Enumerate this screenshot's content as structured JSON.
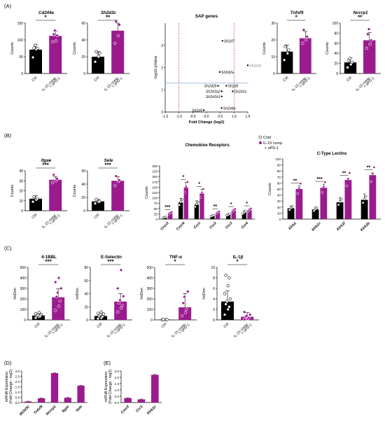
{
  "colors": {
    "ctrl": "#000000",
    "treat": "#9B1B8E",
    "sap_cutoff_v": "#E0311E",
    "sap_cutoff_h": "#8BAEDD",
    "point": "#000000",
    "label_grey": "#888888"
  },
  "panels": {
    "A": "(A)",
    "B": "(B)",
    "C": "(C)",
    "D": "(D)",
    "E": "(E)"
  },
  "groups": {
    "ctrl": "Ctrl",
    "treat_line1": "IL-15 comp.",
    "treat_line2": "+ αPD-1"
  },
  "chart_data": [
    {
      "id": "A1",
      "type": "bar",
      "title": "Cd244a",
      "italic": true,
      "ylabel": "Counts",
      "categories": [
        "Ctrl",
        "IL-15 comp. + αPD-1"
      ],
      "values": [
        71,
        112
      ],
      "errors": [
        15,
        14
      ],
      "ylim": [
        0,
        150
      ],
      "yticks": [
        0,
        50,
        100,
        150
      ],
      "points": [
        [
          48,
          72,
          75,
          76,
          84
        ],
        [
          94,
          97,
          113,
          117,
          128
        ]
      ],
      "sig": "*"
    },
    {
      "id": "A2",
      "type": "bar",
      "title": "Sh2d3c",
      "italic": true,
      "ylabel": "Counts",
      "categories": [
        "Ctrl",
        "IL-15 comp. + αPD-1"
      ],
      "values": [
        20,
        51
      ],
      "errors": [
        6,
        13
      ],
      "ylim": [
        0,
        60
      ],
      "yticks": [
        0,
        20,
        40,
        60
      ],
      "points": [
        [
          14,
          20,
          24,
          26
        ],
        [
          36,
          45,
          58,
          62
        ]
      ],
      "sig": "**"
    },
    {
      "id": "A3",
      "type": "scatter",
      "title": "SAP genes",
      "xlabel": "Fold Change (log2)",
      "ylabel": "-log10 pValue",
      "xlim": [
        -1.5,
        1.5
      ],
      "ylim": [
        0,
        4
      ],
      "xticks": [
        -1.5,
        -1.0,
        -0.5,
        0.0,
        0.5,
        1.0,
        1.5
      ],
      "yticks": [
        0,
        1,
        2,
        3
      ],
      "cutoff_x": [
        -1,
        1
      ],
      "cutoff_y": 1.3,
      "points": [
        {
          "label": "Sh2d7",
          "x": 0.58,
          "y": 3.2
        },
        {
          "label": "Sh2d3c",
          "x": 1.5,
          "y": 2.1
        },
        {
          "label": "Sh2d2a",
          "x": 0.48,
          "y": 1.8
        },
        {
          "label": "Sh2d2b",
          "x": 0.42,
          "y": 1.18
        },
        {
          "label": "Sh2d6",
          "x": 0.72,
          "y": 1.18
        },
        {
          "label": "Sh2d1b2",
          "x": 0.55,
          "y": 0.93
        },
        {
          "label": "Sh2d1a",
          "x": 0.95,
          "y": 0.93
        },
        {
          "label": "Sh2d1b1",
          "x": 0.55,
          "y": 0.7
        },
        {
          "label": "Sh2d4a",
          "x": 0.55,
          "y": 0.18
        },
        {
          "label": "Sh2d5",
          "x": -0.1,
          "y": 0.08
        }
      ]
    },
    {
      "id": "A4",
      "type": "bar",
      "title": "Tnfsf9",
      "italic": true,
      "ylabel": "Counts",
      "categories": [
        "Ctrl",
        "IL-15 comp. + αPD-1"
      ],
      "values": [
        13,
        21
      ],
      "errors": [
        4,
        4
      ],
      "ylim": [
        0,
        30
      ],
      "yticks": [
        0,
        10,
        20,
        30
      ],
      "points": [
        [
          8,
          12,
          14,
          16
        ],
        [
          18,
          20,
          22,
          26
        ]
      ],
      "sig": "*"
    },
    {
      "id": "A5",
      "type": "bar",
      "title": "Nccrp1",
      "italic": true,
      "ylabel": "Counts",
      "categories": [
        "Ctrl",
        "IL-15 comp. + αPD-1"
      ],
      "values": [
        22,
        66
      ],
      "errors": [
        9,
        15
      ],
      "ylim": [
        0,
        100
      ],
      "yticks": [
        0,
        20,
        40,
        60,
        80,
        100
      ],
      "points": [
        [
          12,
          18,
          22,
          26,
          30
        ],
        [
          50,
          58,
          66,
          78,
          88
        ]
      ],
      "sig": "**"
    },
    {
      "id": "B1",
      "type": "bar",
      "title": "Itgae",
      "italic": true,
      "ylabel": "Counts",
      "categories": [
        "Ctrl",
        "IL-15 comp. + αPD-1"
      ],
      "values": [
        12,
        31
      ],
      "errors": [
        3,
        3
      ],
      "ylim": [
        0,
        40
      ],
      "yticks": [
        0,
        10,
        20,
        30,
        40
      ],
      "points": [
        [
          9,
          11,
          12,
          14
        ],
        [
          28,
          30,
          32,
          36
        ]
      ],
      "sig": "***"
    },
    {
      "id": "B2",
      "type": "bar",
      "title": "Sele",
      "italic": true,
      "ylabel": "Counts",
      "categories": [
        "Ctrl",
        "IL-15 comp. + αPD-1"
      ],
      "values": [
        14,
        45
      ],
      "errors": [
        3,
        6
      ],
      "ylim": [
        0,
        60
      ],
      "yticks": [
        0,
        20,
        40,
        60
      ],
      "points": [
        [
          11,
          13,
          14,
          17
        ],
        [
          38,
          44,
          46,
          52
        ]
      ],
      "sig": "***"
    },
    {
      "id": "B3",
      "type": "grouped_bar",
      "title": "Chemokine Receptors",
      "ylabel": "Counts",
      "ylim": [
        0,
        250
      ],
      "yticks": [
        0,
        25,
        50,
        75,
        100,
        125,
        150,
        175,
        200,
        225,
        250
      ],
      "legend": [
        "Cntrl",
        "IL-15 comp.",
        "+ αPD-1"
      ],
      "categories": [
        "Cxcr2",
        "Cxcr6",
        "Ccr1",
        "Ccr2",
        "Ccr3",
        "Ccr4"
      ],
      "series": [
        {
          "name": "Cntrl",
          "values": [
            8,
            78,
            68,
            15,
            20,
            30
          ],
          "errors": [
            3,
            20,
            18,
            3,
            6,
            10
          ]
        },
        {
          "name": "IL-15 comp. + αPD-1",
          "values": [
            28,
            148,
            120,
            30,
            40,
            42
          ],
          "errors": [
            4,
            25,
            20,
            5,
            6,
            7
          ]
        }
      ],
      "sig": [
        "***",
        "*",
        "*",
        "**",
        "*",
        "*"
      ]
    },
    {
      "id": "B4",
      "type": "grouped_bar",
      "title": "C-Type Lectins",
      "ylabel": "Counts",
      "ylim": [
        0,
        100
      ],
      "yticks": [
        0,
        10,
        20,
        30,
        40,
        50,
        60,
        70,
        80,
        90,
        100
      ],
      "categories": [
        "Klrb1",
        "Klrb1c",
        "Klrb1f",
        "Klrb1b"
      ],
      "series": [
        {
          "name": "Cntrl",
          "values": [
            18,
            16,
            28,
            32
          ],
          "errors": [
            4,
            4,
            8,
            10
          ]
        },
        {
          "name": "IL-15 comp. + αPD-1",
          "values": [
            50,
            52,
            65,
            73
          ],
          "errors": [
            5,
            6,
            3,
            4
          ]
        }
      ],
      "sig": [
        "**",
        "***",
        "**",
        "**"
      ]
    },
    {
      "id": "C1",
      "type": "bar",
      "title": "4-1BBL",
      "ylabel": "IntDen",
      "categories": [
        "Ctrl",
        "IL-15 comp. + αPD-1"
      ],
      "values": [
        42,
        215
      ],
      "errors": [
        12,
        80
      ],
      "ylim": [
        0,
        500
      ],
      "yticks": [
        0,
        100,
        200,
        300,
        400,
        500
      ],
      "points": [
        [
          20,
          28,
          34,
          40,
          45,
          52,
          60,
          70
        ],
        [
          90,
          130,
          180,
          220,
          260,
          300,
          360,
          400
        ]
      ],
      "sig": "***"
    },
    {
      "id": "C2",
      "type": "bar",
      "title": "E-Selectin",
      "ylabel": "IntDen",
      "categories": [
        "Ctrl",
        "IL-15 comp. + αPD-1"
      ],
      "values": [
        6,
        28
      ],
      "errors": [
        2,
        12
      ],
      "ylim": [
        0,
        80
      ],
      "yticks": [
        0,
        20,
        40,
        60,
        80
      ],
      "points": [
        [
          2,
          3,
          5,
          6,
          8,
          9,
          10,
          12
        ],
        [
          12,
          18,
          22,
          26,
          30,
          36,
          48,
          76
        ]
      ],
      "sig": "***"
    },
    {
      "id": "C3",
      "type": "bar",
      "title": "TNF-α",
      "ylabel": "IntDen",
      "categories": [
        "Ctrl",
        "IL-15 comp. + αPD-1"
      ],
      "values": [
        2,
        120
      ],
      "errors": [
        1,
        130
      ],
      "ylim": [
        0,
        500
      ],
      "yticks": [
        0,
        100,
        200,
        300,
        400,
        500
      ],
      "points": [
        [
          1,
          2,
          3,
          4
        ],
        [
          40,
          70,
          100,
          160,
          220,
          270
        ]
      ],
      "sig": "*"
    },
    {
      "id": "C4",
      "type": "bar",
      "title": "IL-1β",
      "ylabel": "IntDen",
      "categories": [
        "Ctrl",
        "IL-15 comp. + αPD-1"
      ],
      "values": [
        3.5,
        0.6
      ],
      "errors": [
        2,
        0.8
      ],
      "ylim": [
        0,
        10
      ],
      "yticks": [
        0,
        2,
        4,
        6,
        8,
        10
      ],
      "points": [
        [
          1,
          2,
          2.5,
          3,
          3.5,
          4,
          5,
          6.5,
          8,
          8.5
        ],
        [
          0.1,
          0.2,
          0.4,
          0.6,
          0.8,
          1,
          1.5
        ]
      ],
      "sig": "*"
    },
    {
      "id": "D",
      "type": "bar",
      "ylabel": "mRNA Expression",
      "ylabel2": "(Fold Change - log2)",
      "categories": [
        "Sh2d3c",
        "Tnfsf9",
        "Nccrp1",
        "Itgae",
        "Sele"
      ],
      "values": [
        0.1,
        0.4,
        2.8,
        0.45,
        1.6
      ],
      "errors": [
        0.03,
        0.03,
        0.03,
        0.03,
        0.03
      ],
      "ylim": [
        0,
        3.0
      ],
      "yticks": [
        0.0,
        0.5,
        1.0,
        1.5,
        2.0,
        2.5,
        3.0
      ]
    },
    {
      "id": "E",
      "type": "bar",
      "ylabel": "mRNA Expression",
      "ylabel2": "(Fold Change - log2)",
      "categories": [
        "Cxcr2",
        "Ccr1",
        "Klrb1c"
      ],
      "values": [
        0.35,
        0.25,
        2.2
      ],
      "errors": [
        0.03,
        0.03,
        0.03
      ],
      "ylim": [
        0,
        2.5
      ],
      "yticks": [
        0.0,
        0.5,
        1.0,
        1.5,
        2.0,
        2.5
      ]
    }
  ]
}
